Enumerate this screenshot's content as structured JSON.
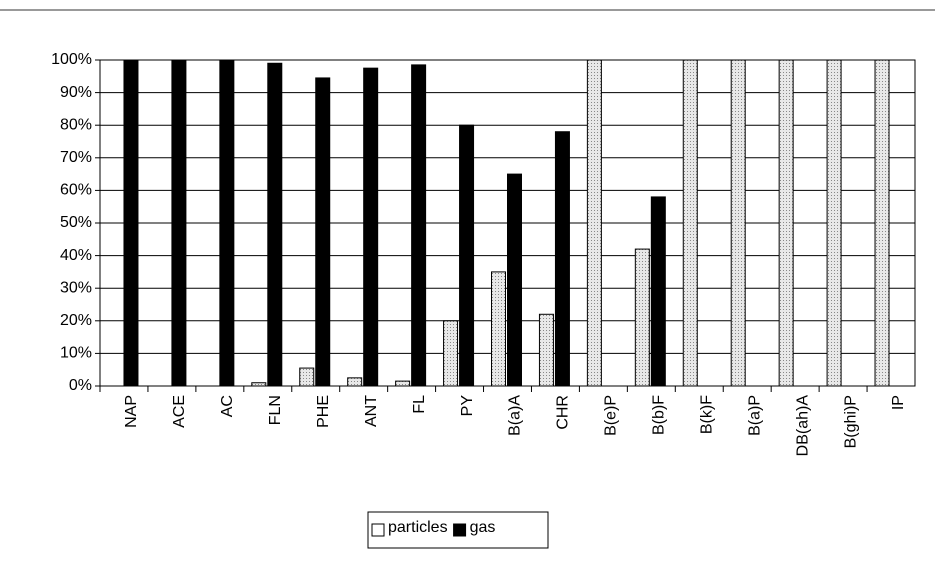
{
  "chart_data": {
    "type": "bar",
    "categories": [
      "NAP",
      "ACE",
      "AC",
      "FLN",
      "PHE",
      "ANT",
      "FL",
      "PY",
      "B(a)A",
      "CHR",
      "B(e)P",
      "B(b)F",
      "B(k)F",
      "B(a)P",
      "DB(ah)A",
      "B(ghi)P",
      "IP"
    ],
    "series": [
      {
        "name": "particles",
        "color": "#dcdcdc",
        "values": [
          0,
          0,
          0,
          1,
          5.5,
          2.5,
          1.5,
          20,
          35,
          22,
          100,
          42,
          100,
          100,
          100,
          100,
          100
        ]
      },
      {
        "name": "gas",
        "color": "#000000",
        "values": [
          100,
          100,
          100,
          99,
          94.5,
          97.5,
          98.5,
          80,
          65,
          78,
          0,
          58,
          0,
          0,
          0,
          0,
          0
        ]
      }
    ],
    "ylim": [
      0,
      100
    ],
    "yticks": [
      {
        "value": 0,
        "label": "0%"
      },
      {
        "value": 10,
        "label": "10%"
      },
      {
        "value": 20,
        "label": "20%"
      },
      {
        "value": 30,
        "label": "30%"
      },
      {
        "value": 40,
        "label": "40%"
      },
      {
        "value": 50,
        "label": "50%"
      },
      {
        "value": 60,
        "label": "60%"
      },
      {
        "value": 70,
        "label": "70%"
      },
      {
        "value": 80,
        "label": "80%"
      },
      {
        "value": 90,
        "label": "90%"
      },
      {
        "value": 100,
        "label": "100%"
      }
    ],
    "grid": true
  }
}
